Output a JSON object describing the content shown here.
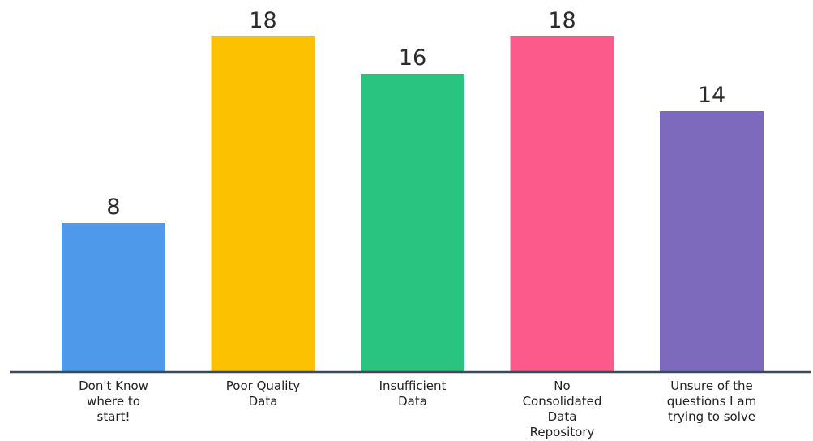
{
  "chart_data": {
    "type": "bar",
    "categories": [
      [
        "Don't Know",
        "where to",
        "start!"
      ],
      [
        "Poor Quality",
        "Data"
      ],
      [
        "Insufficient",
        "Data"
      ],
      [
        "No",
        "Consolidated",
        "Data",
        "Repository"
      ],
      [
        "Unsure of the",
        "questions I am",
        "trying to solve"
      ]
    ],
    "values": [
      8,
      18,
      16,
      18,
      14
    ],
    "value_labels": [
      "8",
      "18",
      "16",
      "18",
      "14"
    ],
    "colors": [
      "#4e99ea",
      "#fcc100",
      "#29c47f",
      "#fd5a8c",
      "#7e6abc"
    ],
    "axis_color": "#3a4a5c",
    "grid": false,
    "legend": "none",
    "title": "",
    "xlabel": "",
    "ylabel": "",
    "ylim": [
      0,
      18
    ]
  }
}
